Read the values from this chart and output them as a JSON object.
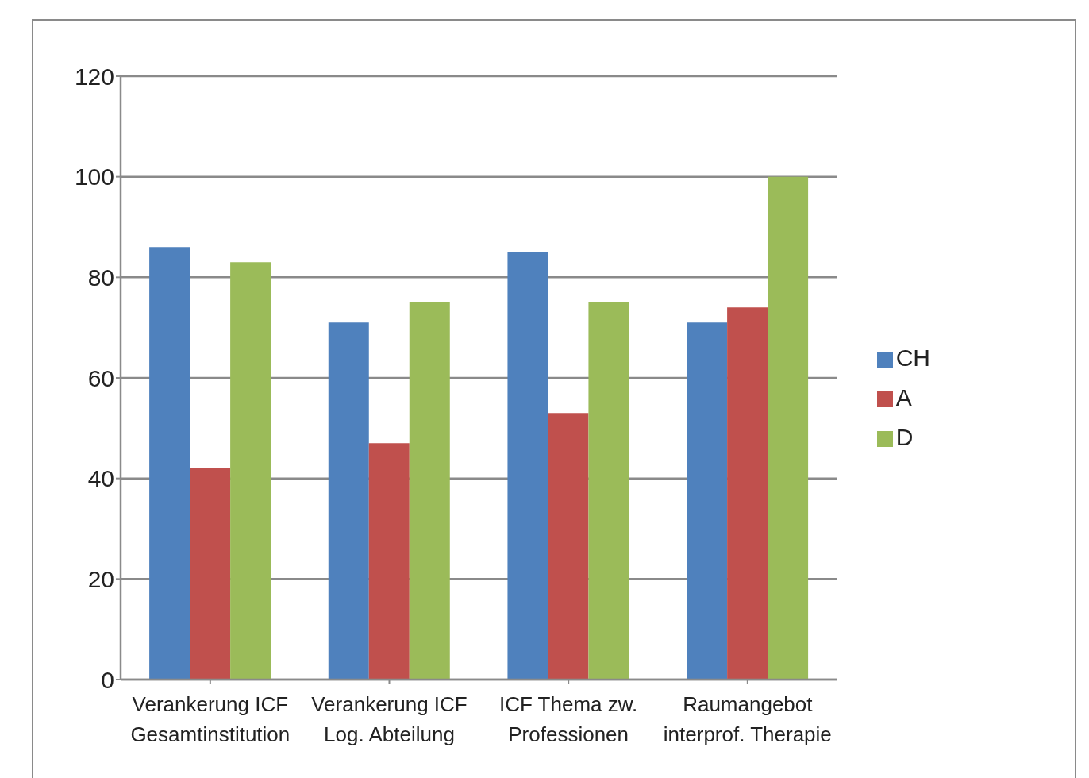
{
  "chart_data": {
    "type": "bar",
    "categories": [
      "Verankerung ICF\nGesamtinstitution",
      "Verankerung ICF\nLog. Abteilung",
      "ICF Thema zw.\nProfessionen",
      "Raumangebot\ninterprof. Therapie"
    ],
    "series": [
      {
        "name": "CH",
        "color": "#4f81bd",
        "values": [
          86,
          71,
          85,
          71
        ]
      },
      {
        "name": "A",
        "color": "#c0504d",
        "values": [
          42,
          47,
          53,
          74
        ]
      },
      {
        "name": "D",
        "color": "#9bbb59",
        "values": [
          83,
          75,
          75,
          100
        ]
      }
    ],
    "ylim": [
      0,
      120
    ],
    "yticks": [
      0,
      20,
      40,
      60,
      80,
      100,
      120
    ],
    "grid": "y",
    "legend": "right"
  }
}
